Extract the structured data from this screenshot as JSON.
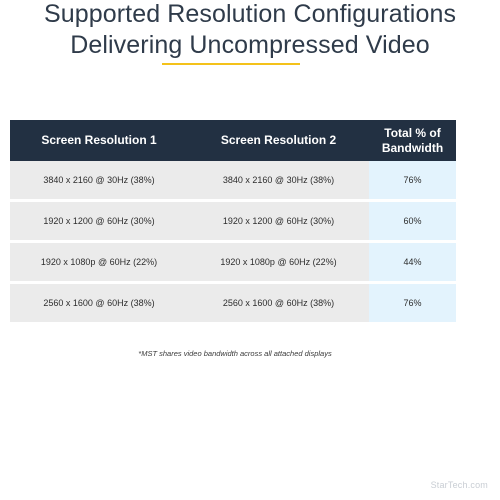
{
  "title": {
    "line1": "Supported Resolution Configurations",
    "line2": "Delivering Uncompressed Video"
  },
  "table": {
    "headers": {
      "col1": "Screen Resolution 1",
      "col2": "Screen Resolution 2",
      "col3_line1": "Total % of",
      "col3_line2": "Bandwidth"
    },
    "rows": [
      {
        "res1": "3840 x 2160 @ 30Hz (38%)",
        "res2": "3840 x 2160 @ 30Hz (38%)",
        "total": "76%"
      },
      {
        "res1": "1920 x 1200 @ 60Hz (30%)",
        "res2": "1920 x 1200 @ 60Hz (30%)",
        "total": "60%"
      },
      {
        "res1": "1920 x 1080p @ 60Hz (22%)",
        "res2": "1920 x 1080p @ 60Hz (22%)",
        "total": "44%"
      },
      {
        "res1": "2560 x 1600 @ 60Hz (38%)",
        "res2": "2560 x 1600 @ 60Hz (38%)",
        "total": "76%"
      }
    ]
  },
  "footnote": "*MST shares video bandwidth across all attached displays",
  "brand": "StarTech.com",
  "colors": {
    "header_bg": "#223042",
    "row_bg": "#ebebeb",
    "total_bg": "#e3f3fd",
    "accent_underline": "#f4c21a"
  }
}
